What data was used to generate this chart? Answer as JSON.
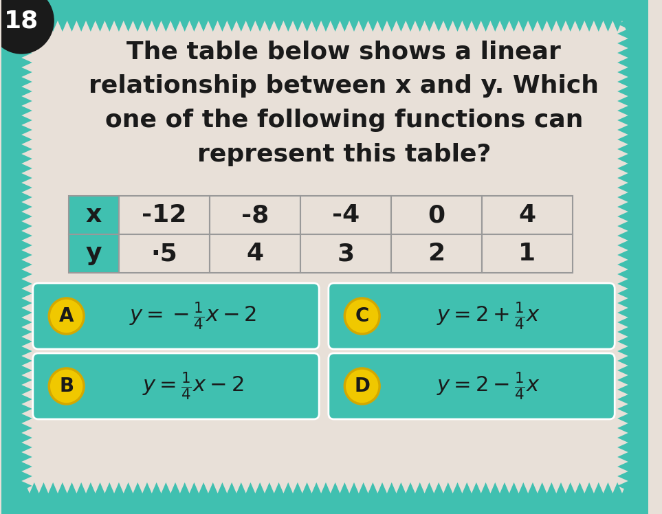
{
  "bg_color": "#e8e0d8",
  "teal_color": "#40c0b0",
  "question_number": "18",
  "question_text_lines": [
    "The table below shows a linear",
    "relationship between x and y. Which",
    "one of the following functions can",
    "represent this table?"
  ],
  "table_headers": [
    "x",
    "-12",
    "-8",
    "-4",
    "0",
    "4"
  ],
  "table_row2": [
    "y",
    "·5",
    "4",
    "3",
    "2",
    "1"
  ],
  "boxes": [
    {
      "label": "A",
      "formula": "$y = -\\frac{1}{4}x - 2$",
      "col": 0,
      "row": 0
    },
    {
      "label": "C",
      "formula": "$y = 2 + \\frac{1}{4}x$",
      "col": 1,
      "row": 0
    },
    {
      "label": "B",
      "formula": "$y = \\frac{1}{4}x - 2$",
      "col": 0,
      "row": 1
    },
    {
      "label": "D",
      "formula": "$y = 2 - \\frac{1}{4}x$",
      "col": 1,
      "row": 1
    }
  ],
  "circle_color": "#f0c800",
  "circle_border": "#d4a800",
  "num_circle_color": "#1a1a1a",
  "text_color": "#1a1a1a",
  "table_header_bg": "#40c0b0",
  "table_cell_bg": "#e8e0d8",
  "answer_box_bg": "#40c0b0"
}
